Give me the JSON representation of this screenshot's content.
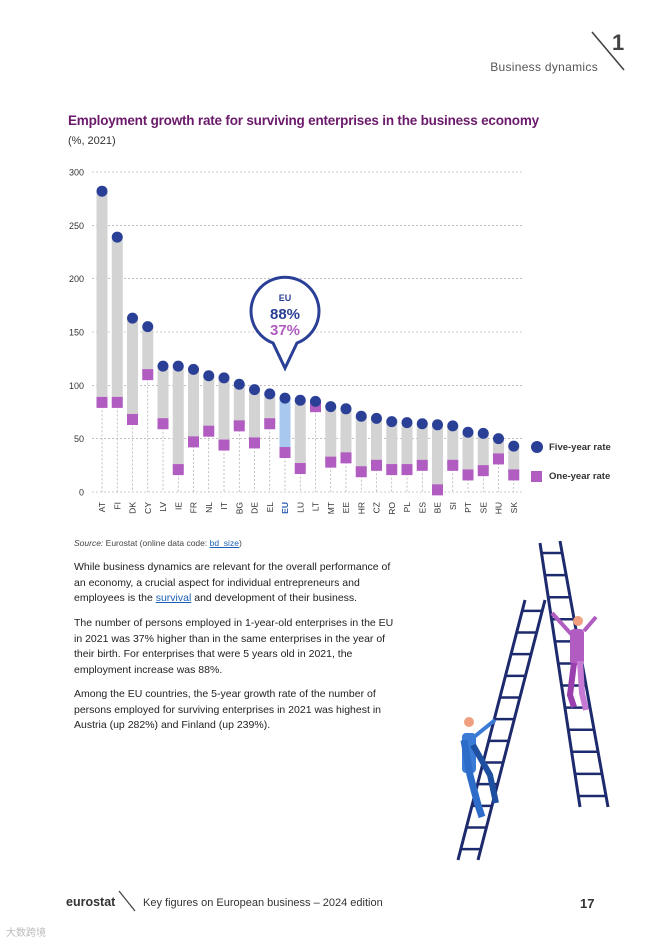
{
  "header": {
    "section": "Business dynamics",
    "chapter": "1"
  },
  "chart_title": "Employment growth rate for surviving enterprises in the business economy",
  "chart_subtitle": "(%, 2021)",
  "chart_data": {
    "type": "dot-range",
    "categories": [
      "AT",
      "FI",
      "DK",
      "CY",
      "LV",
      "IE",
      "FR",
      "NL",
      "IT",
      "BG",
      "DE",
      "EL",
      "EU",
      "LU",
      "LT",
      "MT",
      "EE",
      "HR",
      "CZ",
      "RO",
      "PL",
      "ES",
      "BE",
      "SI",
      "PT",
      "SE",
      "HU",
      "SK"
    ],
    "highlight_category": "EU",
    "series": [
      {
        "name": "Five-year rate",
        "marker": "circle",
        "color": "#2a3f96",
        "values": [
          282,
          239,
          163,
          155,
          118,
          118,
          115,
          109,
          107,
          101,
          96,
          92,
          88,
          86,
          85,
          80,
          78,
          71,
          69,
          66,
          65,
          64,
          63,
          62,
          56,
          55,
          50,
          43
        ]
      },
      {
        "name": "One-year rate",
        "marker": "square",
        "color": "#b05cc0",
        "values": [
          84,
          84,
          68,
          110,
          64,
          21,
          47,
          57,
          44,
          62,
          46,
          64,
          37,
          22,
          80,
          28,
          32,
          19,
          25,
          21,
          21,
          25,
          2,
          25,
          16,
          20,
          31,
          16
        ]
      }
    ],
    "ylim": [
      0,
      300
    ],
    "yticks": [
      0,
      50,
      100,
      150,
      200,
      250,
      300
    ],
    "legend_position": "right",
    "grid": true,
    "callout": {
      "label": "EU",
      "five_year": "88%",
      "one_year": "37%"
    },
    "colors": {
      "bar": "#d3d3d3",
      "bar_highlight": "#a8c8f0",
      "grid": "#9a9a9a",
      "axis_text": "#333333",
      "highlight_text": "#2a5fb0"
    }
  },
  "legend": {
    "five_year_label": "Five-year rate",
    "one_year_label": "One-year rate"
  },
  "source": {
    "prefix": "Source:",
    "text": " Eurostat (online data code: ",
    "link": "bd_size",
    "suffix": ")"
  },
  "body": {
    "p1_a": "While business dynamics are relevant for the overall performance of an economy, a crucial aspect for individual entrepreneurs and employees is the ",
    "p1_link": "survival",
    "p1_b": " and development of their business.",
    "p2": "The number of persons employed in 1-year-old enterprises in the EU in 2021 was 37% higher than in the same enterprises in the year of their birth. For enterprises that were 5 years old in 2021, the employment increase was 88%.",
    "p3": "Among the EU countries, the 5-year growth rate of the number of persons employed for surviving enterprises in 2021 was highest in Austria (up 282%) and Finland (up 239%)."
  },
  "footer": {
    "logo": "eurostat",
    "text": "Key figures on European business – 2024 edition",
    "page": "17"
  },
  "watermark": "大数跨境"
}
